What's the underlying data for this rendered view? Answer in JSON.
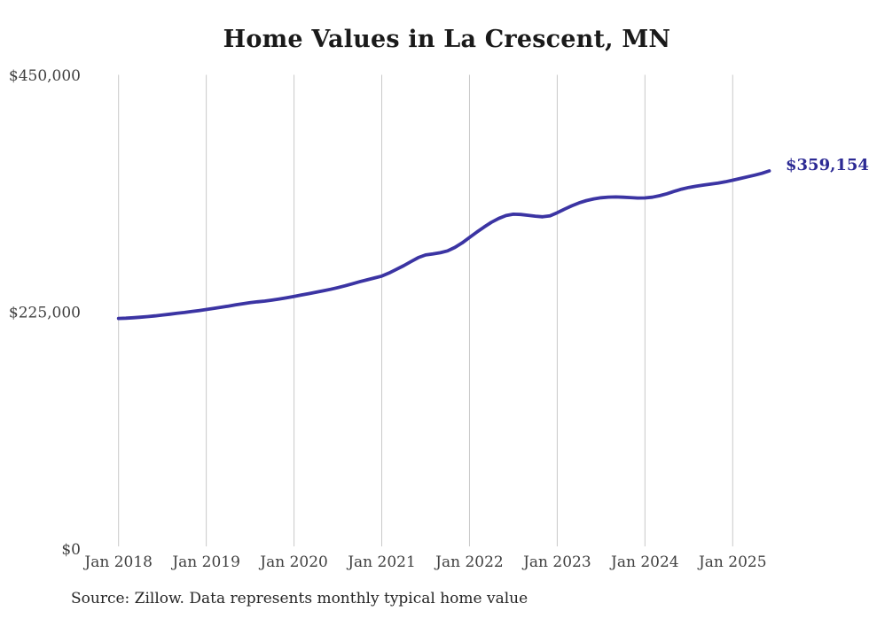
{
  "chart": {
    "title": "Home Values in La Crescent, MN",
    "source_note": "Source: Zillow. Data represents monthly typical home value",
    "end_label": "$359,154",
    "line_color": "#3b34a3",
    "end_label_color": "#2c2a94",
    "grid_color": "#c9c9c9",
    "axis_text_color": "#404040",
    "y_ticks": [
      {
        "label": "$450,000",
        "value": 450000
      },
      {
        "label": "$225,000",
        "value": 225000
      },
      {
        "label": "$0",
        "value": 0
      }
    ],
    "x_ticks": [
      {
        "label": "Jan 2018",
        "month_index": 0
      },
      {
        "label": "Jan 2019",
        "month_index": 12
      },
      {
        "label": "Jan 2020",
        "month_index": 24
      },
      {
        "label": "Jan 2021",
        "month_index": 36
      },
      {
        "label": "Jan 2022",
        "month_index": 48
      },
      {
        "label": "Jan 2023",
        "month_index": 60
      },
      {
        "label": "Jan 2024",
        "month_index": 72
      },
      {
        "label": "Jan 2025",
        "month_index": 84
      }
    ]
  },
  "chart_data": {
    "type": "line",
    "title": "Home Values in La Crescent, MN",
    "xlabel": "",
    "ylabel": "",
    "x_unit": "month",
    "x_start": "2018-01",
    "x_end": "2025-06",
    "ylim": [
      0,
      450000
    ],
    "grid": "vertical-only",
    "legend": "none",
    "latest_value": 359154,
    "latest_value_label": "$359,154",
    "series": [
      {
        "name": "Monthly typical home value",
        "values": [
          219000,
          219300,
          219700,
          220200,
          220800,
          221500,
          222300,
          223100,
          223900,
          224700,
          225600,
          226500,
          227500,
          228500,
          229600,
          230700,
          231900,
          233000,
          234000,
          234800,
          235500,
          236400,
          237500,
          238700,
          240000,
          241300,
          242600,
          243900,
          245300,
          246700,
          248300,
          250100,
          252000,
          253900,
          255700,
          257500,
          259200,
          262200,
          265600,
          269200,
          273000,
          276800,
          279300,
          280300,
          281400,
          283200,
          286500,
          290800,
          296000,
          301000,
          305800,
          310400,
          314000,
          316800,
          318000,
          317800,
          317000,
          316200,
          315600,
          316400,
          319500,
          322800,
          326000,
          328800,
          331000,
          332600,
          333700,
          334300,
          334400,
          334200,
          333800,
          333400,
          333500,
          334200,
          335600,
          337500,
          339700,
          341800,
          343400,
          344700,
          345700,
          346600,
          347600,
          348800,
          350300,
          351900,
          353500,
          355100,
          356900,
          359154
        ]
      }
    ]
  }
}
